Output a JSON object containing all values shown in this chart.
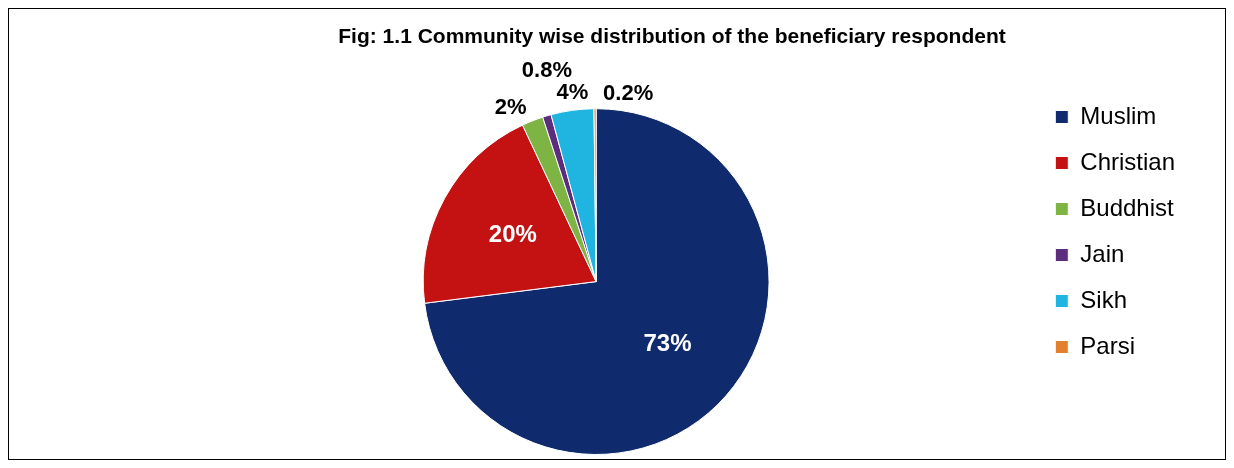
{
  "chart_data": {
    "type": "pie",
    "title": "Fig: 1.1 Community wise distribution of the beneficiary respondent",
    "categories": [
      "Muslim",
      "Christian",
      "Buddhist",
      "Jain",
      "Sikh",
      "Parsi"
    ],
    "values": [
      73,
      20,
      2,
      0.8,
      4,
      0.2
    ],
    "colors": [
      "#0f2b6e",
      "#c41212",
      "#7db443",
      "#5c2d7e",
      "#20b4e0",
      "#e2802f"
    ],
    "value_labels": [
      "73%",
      "20%",
      "2%",
      "0.8%",
      "4%",
      "0.2%"
    ],
    "legend": "right"
  }
}
